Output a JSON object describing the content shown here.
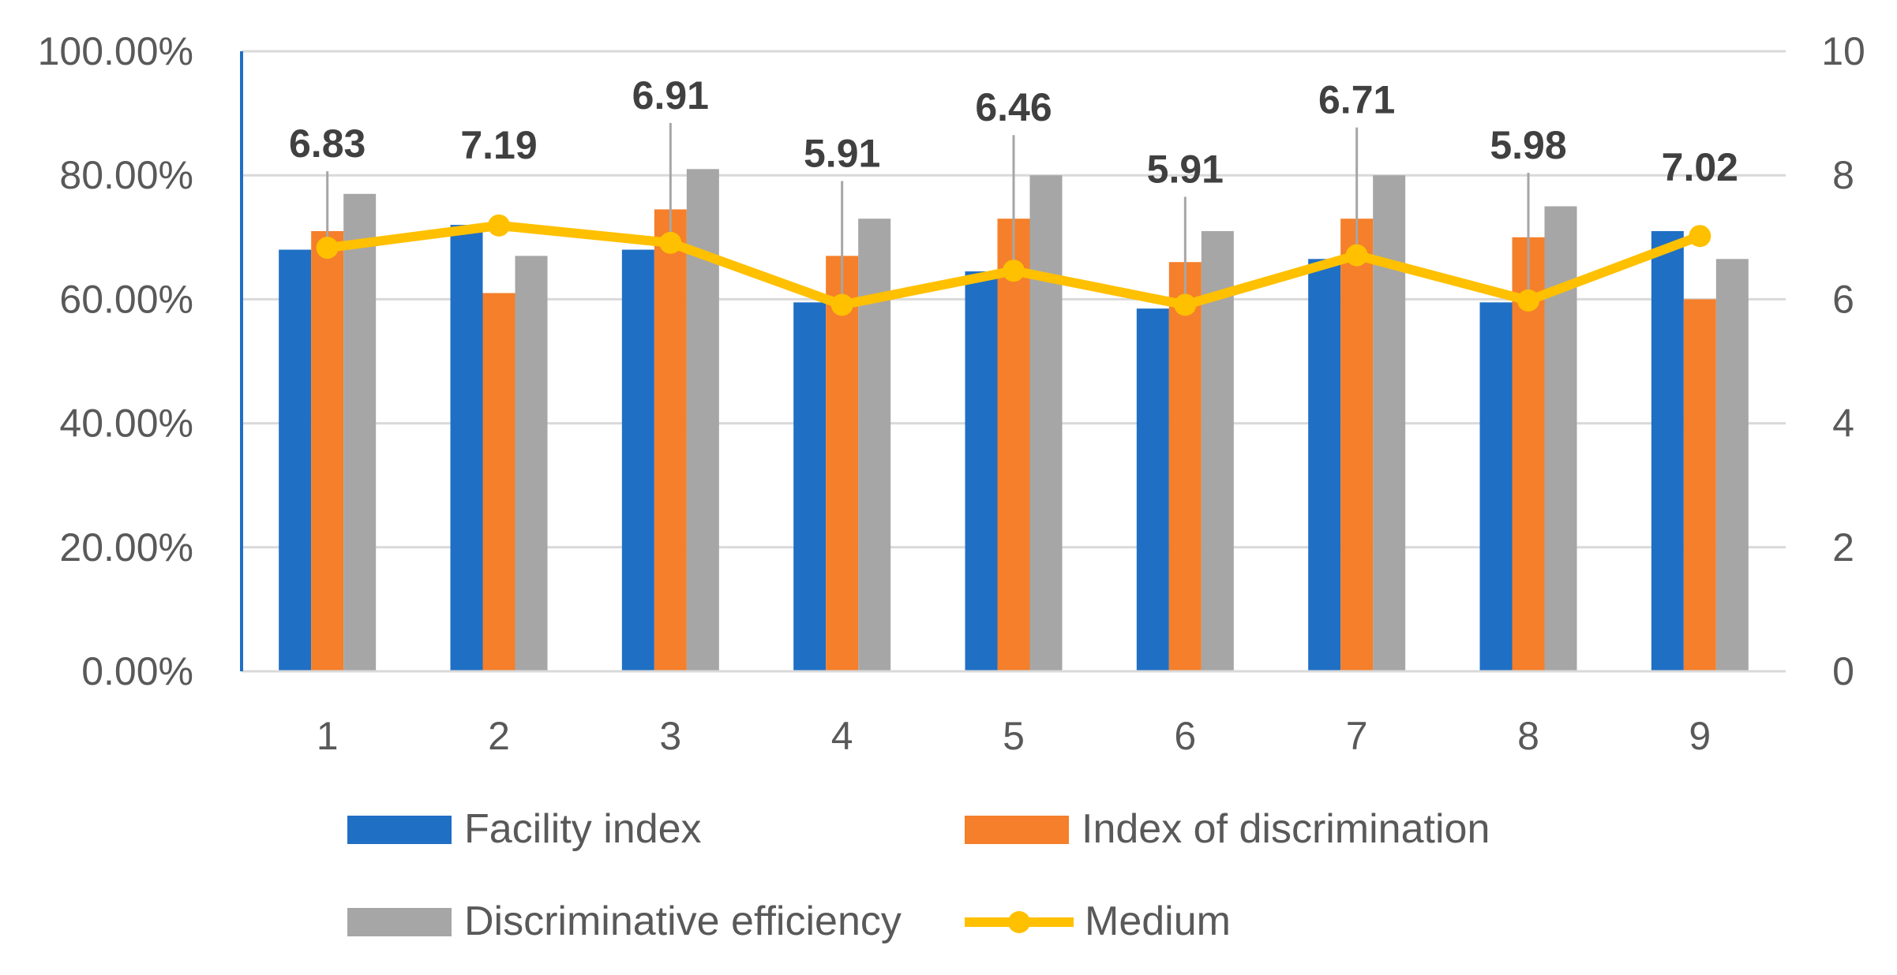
{
  "chart_data": {
    "type": "bar",
    "title": "",
    "xlabel": "",
    "ylabel": "",
    "categories": [
      "1",
      "2",
      "3",
      "4",
      "5",
      "6",
      "7",
      "8",
      "9"
    ],
    "series": [
      {
        "name": "Facility index",
        "axis": "left",
        "kind": "bar",
        "color": "#1f6fc5",
        "values": [
          0.68,
          0.72,
          0.68,
          0.595,
          0.645,
          0.585,
          0.665,
          0.595,
          0.71
        ]
      },
      {
        "name": "Index of discrimination",
        "axis": "left",
        "kind": "bar",
        "color": "#f57f2a",
        "values": [
          0.71,
          0.61,
          0.745,
          0.67,
          0.73,
          0.66,
          0.73,
          0.7,
          0.6
        ]
      },
      {
        "name": "Discriminative efficiency",
        "axis": "left",
        "kind": "bar",
        "color": "#a6a6a6",
        "values": [
          0.77,
          0.67,
          0.81,
          0.73,
          0.8,
          0.71,
          0.8,
          0.75,
          0.665
        ]
      },
      {
        "name": "Medium",
        "axis": "right",
        "kind": "line",
        "color": "#ffc000",
        "values": [
          6.83,
          7.19,
          6.91,
          5.91,
          6.46,
          5.91,
          6.71,
          5.98,
          7.02
        ]
      }
    ],
    "data_labels": [
      "6.83",
      "7.19",
      "6.91",
      "5.91",
      "6.46",
      "5.91",
      "6.71",
      "5.98",
      "7.02"
    ],
    "y_left": {
      "min": 0,
      "max": 1,
      "ticks": [
        "0.00%",
        "20.00%",
        "40.00%",
        "60.00%",
        "80.00%",
        "100.00%"
      ]
    },
    "y_right": {
      "min": 0,
      "max": 10,
      "ticks": [
        "0",
        "2",
        "4",
        "6",
        "8",
        "10"
      ]
    },
    "grid": true,
    "legend_position": "bottom"
  }
}
